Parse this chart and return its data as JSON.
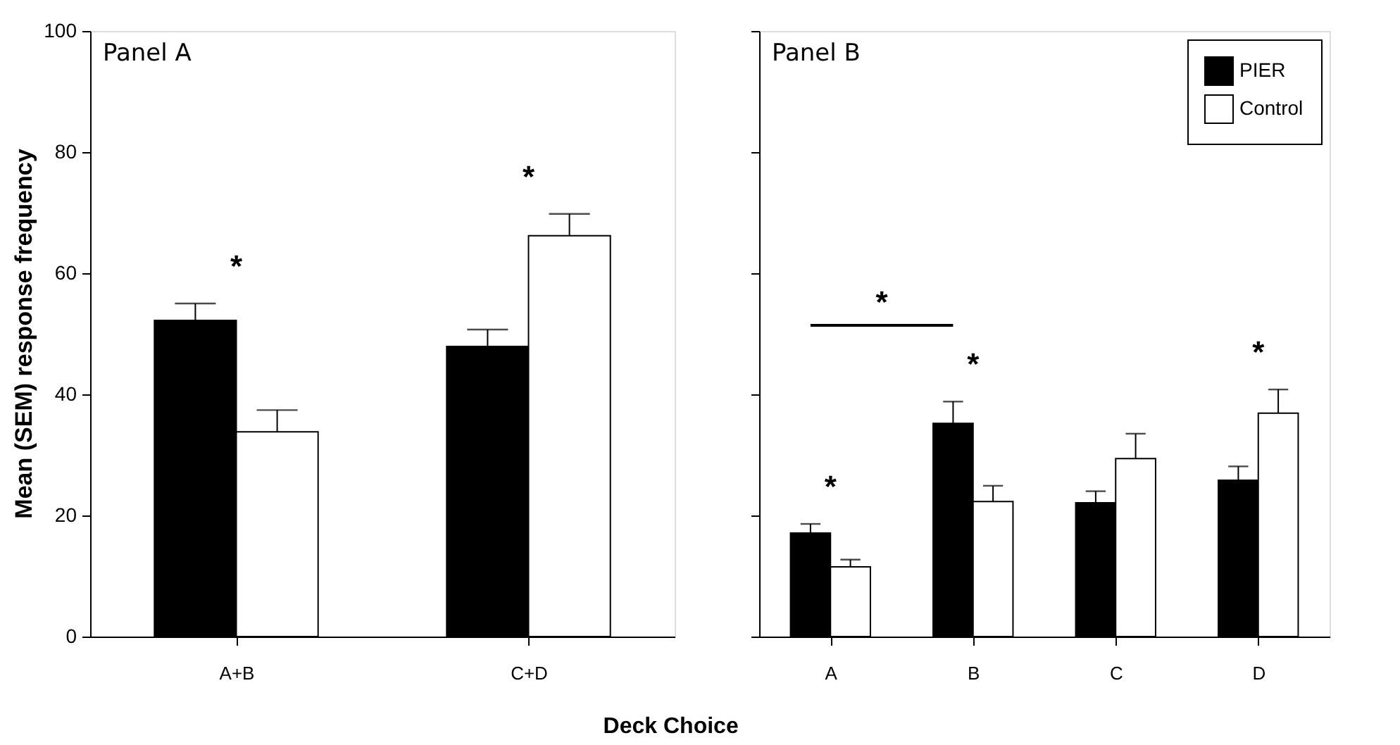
{
  "chart_data": [
    {
      "type": "bar",
      "title": "Panel A",
      "xlabel": "Deck Choice",
      "ylabel": "Mean (SEM) response frequency",
      "categories": [
        "A+B",
        "C+D"
      ],
      "series": [
        {
          "color": "#000000",
          "values": [
            52.2,
            47.9
          ],
          "errors": [
            [
              52.2,
              55.0
            ],
            [
              47.9,
              50.7
            ]
          ]
        },
        {
          "color": "#ffffff",
          "values": [
            33.8,
            66.2
          ],
          "errors": [
            [
              33.8,
              37.4
            ],
            [
              66.2,
              69.8
            ]
          ]
        }
      ],
      "ylim": [
        0,
        100
      ],
      "yticks": [
        0,
        20,
        40,
        60,
        80,
        100
      ],
      "grid": false,
      "legend": false,
      "annotations": [
        "*",
        "*"
      ]
    },
    {
      "type": "bar",
      "title": "Panel B",
      "categories": [
        "A",
        "B",
        "C",
        "D"
      ],
      "series": [
        {
          "name": "PIER",
          "color": "#000000",
          "values": [
            17.1,
            35.2,
            22.1,
            25.8
          ],
          "errors": [
            [
              17.1,
              18.6
            ],
            [
              35.2,
              38.8
            ],
            [
              22.1,
              24.0
            ],
            [
              25.8,
              28.1
            ]
          ]
        },
        {
          "name": "Control",
          "color": "#ffffff",
          "values": [
            11.5,
            22.3,
            29.4,
            36.9
          ],
          "errors": [
            [
              11.5,
              12.7
            ],
            [
              22.3,
              24.9
            ],
            [
              29.4,
              33.5
            ],
            [
              36.9,
              40.8
            ]
          ]
        }
      ],
      "ylim": [
        0,
        100
      ],
      "yticks": [
        0,
        20,
        40,
        60,
        80,
        100
      ],
      "grid": false,
      "legend": "top right",
      "tick_labels": "x",
      "annotations": [
        "*",
        "*",
        "*",
        "*"
      ]
    }
  ]
}
